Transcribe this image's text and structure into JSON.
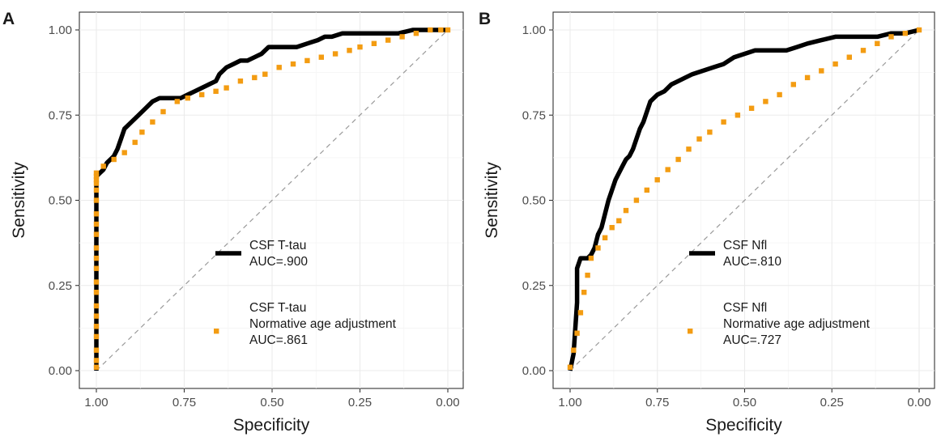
{
  "chart_data": [
    {
      "type": "line",
      "panel_label": "A",
      "xlabel": "Specificity",
      "ylabel": "Sensitivity",
      "xlim": [
        1.0,
        0.0
      ],
      "ylim": [
        0.0,
        1.0
      ],
      "x_reversed": true,
      "grid": true,
      "x_ticks": [
        "1.00",
        "0.75",
        "0.50",
        "0.25",
        "0.00"
      ],
      "y_ticks": [
        "0.00",
        "0.25",
        "0.50",
        "0.75",
        "1.00"
      ],
      "reference_line": "diagonal",
      "legend": {
        "placement": "inside-bottom-right",
        "entries": [
          {
            "lines": [
              "CSF T-tau",
              "AUC=.900"
            ],
            "style": "solid",
            "color": "#000000"
          },
          {
            "lines": [
              "CSF T-tau",
              "Normative age adjustment",
              "AUC=.861"
            ],
            "style": "dotted",
            "color": "#f39c12"
          }
        ]
      },
      "series": [
        {
          "style": "solid",
          "color": "#000000",
          "x": [
            1.0,
            1.0,
            0.99,
            0.98,
            0.97,
            0.96,
            0.95,
            0.94,
            0.93,
            0.92,
            0.9,
            0.88,
            0.86,
            0.84,
            0.82,
            0.8,
            0.78,
            0.76,
            0.74,
            0.72,
            0.7,
            0.68,
            0.66,
            0.65,
            0.63,
            0.61,
            0.59,
            0.57,
            0.55,
            0.53,
            0.51,
            0.49,
            0.46,
            0.43,
            0.4,
            0.37,
            0.35,
            0.33,
            0.3,
            0.28,
            0.25,
            0.22,
            0.18,
            0.14,
            0.1,
            0.06,
            0.03,
            0.0
          ],
          "y": [
            0.0,
            0.57,
            0.58,
            0.59,
            0.61,
            0.62,
            0.63,
            0.65,
            0.68,
            0.71,
            0.73,
            0.75,
            0.77,
            0.79,
            0.8,
            0.8,
            0.8,
            0.8,
            0.81,
            0.82,
            0.83,
            0.84,
            0.85,
            0.87,
            0.89,
            0.9,
            0.91,
            0.91,
            0.92,
            0.93,
            0.95,
            0.95,
            0.95,
            0.95,
            0.96,
            0.97,
            0.98,
            0.98,
            0.99,
            0.99,
            0.99,
            0.99,
            0.99,
            0.99,
            1.0,
            1.0,
            1.0,
            1.0
          ]
        },
        {
          "style": "dotted",
          "color": "#f39c12",
          "x": [
            1.0,
            1.0,
            1.0,
            1.0,
            1.0,
            1.0,
            1.0,
            1.0,
            1.0,
            1.0,
            1.0,
            1.0,
            1.0,
            1.0,
            1.0,
            1.0,
            1.0,
            1.0,
            1.0,
            1.0,
            1.0,
            0.98,
            0.95,
            0.92,
            0.89,
            0.87,
            0.84,
            0.81,
            0.77,
            0.74,
            0.7,
            0.66,
            0.63,
            0.59,
            0.55,
            0.52,
            0.48,
            0.44,
            0.4,
            0.36,
            0.32,
            0.28,
            0.25,
            0.21,
            0.17,
            0.13,
            0.09,
            0.05,
            0.02,
            0.0
          ],
          "y": [
            0.01,
            0.03,
            0.06,
            0.1,
            0.13,
            0.16,
            0.19,
            0.23,
            0.26,
            0.3,
            0.33,
            0.36,
            0.4,
            0.43,
            0.46,
            0.5,
            0.53,
            0.55,
            0.56,
            0.57,
            0.58,
            0.6,
            0.62,
            0.64,
            0.67,
            0.7,
            0.73,
            0.76,
            0.79,
            0.8,
            0.81,
            0.82,
            0.83,
            0.85,
            0.86,
            0.87,
            0.89,
            0.9,
            0.91,
            0.92,
            0.93,
            0.94,
            0.95,
            0.96,
            0.97,
            0.98,
            0.99,
            1.0,
            1.0,
            1.0
          ]
        }
      ]
    },
    {
      "type": "line",
      "panel_label": "B",
      "xlabel": "Specificity",
      "ylabel": "Sensitivity",
      "xlim": [
        1.0,
        0.0
      ],
      "ylim": [
        0.0,
        1.0
      ],
      "x_reversed": true,
      "grid": true,
      "x_ticks": [
        "1.00",
        "0.75",
        "0.50",
        "0.25",
        "0.00"
      ],
      "y_ticks": [
        "0.00",
        "0.25",
        "0.50",
        "0.75",
        "1.00"
      ],
      "reference_line": "diagonal",
      "legend": {
        "placement": "inside-bottom-right",
        "entries": [
          {
            "lines": [
              "CSF Nfl",
              "AUC=.810"
            ],
            "style": "solid",
            "color": "#000000"
          },
          {
            "lines": [
              "CSF Nfl",
              "Normative age adjustment",
              "AUC=.727"
            ],
            "style": "dotted",
            "color": "#f39c12"
          }
        ]
      },
      "series": [
        {
          "style": "solid",
          "color": "#000000",
          "x": [
            1.0,
            0.99,
            0.98,
            0.98,
            0.97,
            0.96,
            0.95,
            0.94,
            0.93,
            0.92,
            0.91,
            0.9,
            0.89,
            0.88,
            0.87,
            0.86,
            0.85,
            0.84,
            0.83,
            0.82,
            0.81,
            0.8,
            0.79,
            0.78,
            0.77,
            0.76,
            0.75,
            0.73,
            0.71,
            0.69,
            0.67,
            0.65,
            0.62,
            0.59,
            0.56,
            0.53,
            0.5,
            0.47,
            0.44,
            0.41,
            0.38,
            0.35,
            0.32,
            0.28,
            0.24,
            0.2,
            0.16,
            0.12,
            0.08,
            0.04,
            0.0
          ],
          "y": [
            0.0,
            0.05,
            0.2,
            0.3,
            0.33,
            0.33,
            0.33,
            0.34,
            0.36,
            0.4,
            0.42,
            0.46,
            0.5,
            0.53,
            0.56,
            0.58,
            0.6,
            0.62,
            0.63,
            0.65,
            0.68,
            0.71,
            0.73,
            0.76,
            0.79,
            0.8,
            0.81,
            0.82,
            0.84,
            0.85,
            0.86,
            0.87,
            0.88,
            0.89,
            0.9,
            0.92,
            0.93,
            0.94,
            0.94,
            0.94,
            0.94,
            0.95,
            0.96,
            0.97,
            0.98,
            0.98,
            0.98,
            0.98,
            0.99,
            0.99,
            1.0
          ]
        },
        {
          "style": "dotted",
          "color": "#f39c12",
          "x": [
            1.0,
            0.99,
            0.98,
            0.97,
            0.96,
            0.95,
            0.94,
            0.92,
            0.9,
            0.88,
            0.86,
            0.84,
            0.81,
            0.78,
            0.75,
            0.72,
            0.69,
            0.66,
            0.63,
            0.6,
            0.56,
            0.52,
            0.48,
            0.44,
            0.4,
            0.36,
            0.32,
            0.28,
            0.24,
            0.2,
            0.16,
            0.12,
            0.08,
            0.04,
            0.0
          ],
          "y": [
            0.01,
            0.06,
            0.11,
            0.17,
            0.23,
            0.28,
            0.33,
            0.36,
            0.39,
            0.42,
            0.44,
            0.47,
            0.5,
            0.53,
            0.56,
            0.59,
            0.62,
            0.65,
            0.68,
            0.7,
            0.73,
            0.75,
            0.77,
            0.79,
            0.81,
            0.84,
            0.86,
            0.88,
            0.9,
            0.92,
            0.94,
            0.96,
            0.98,
            0.99,
            1.0
          ]
        }
      ]
    }
  ]
}
